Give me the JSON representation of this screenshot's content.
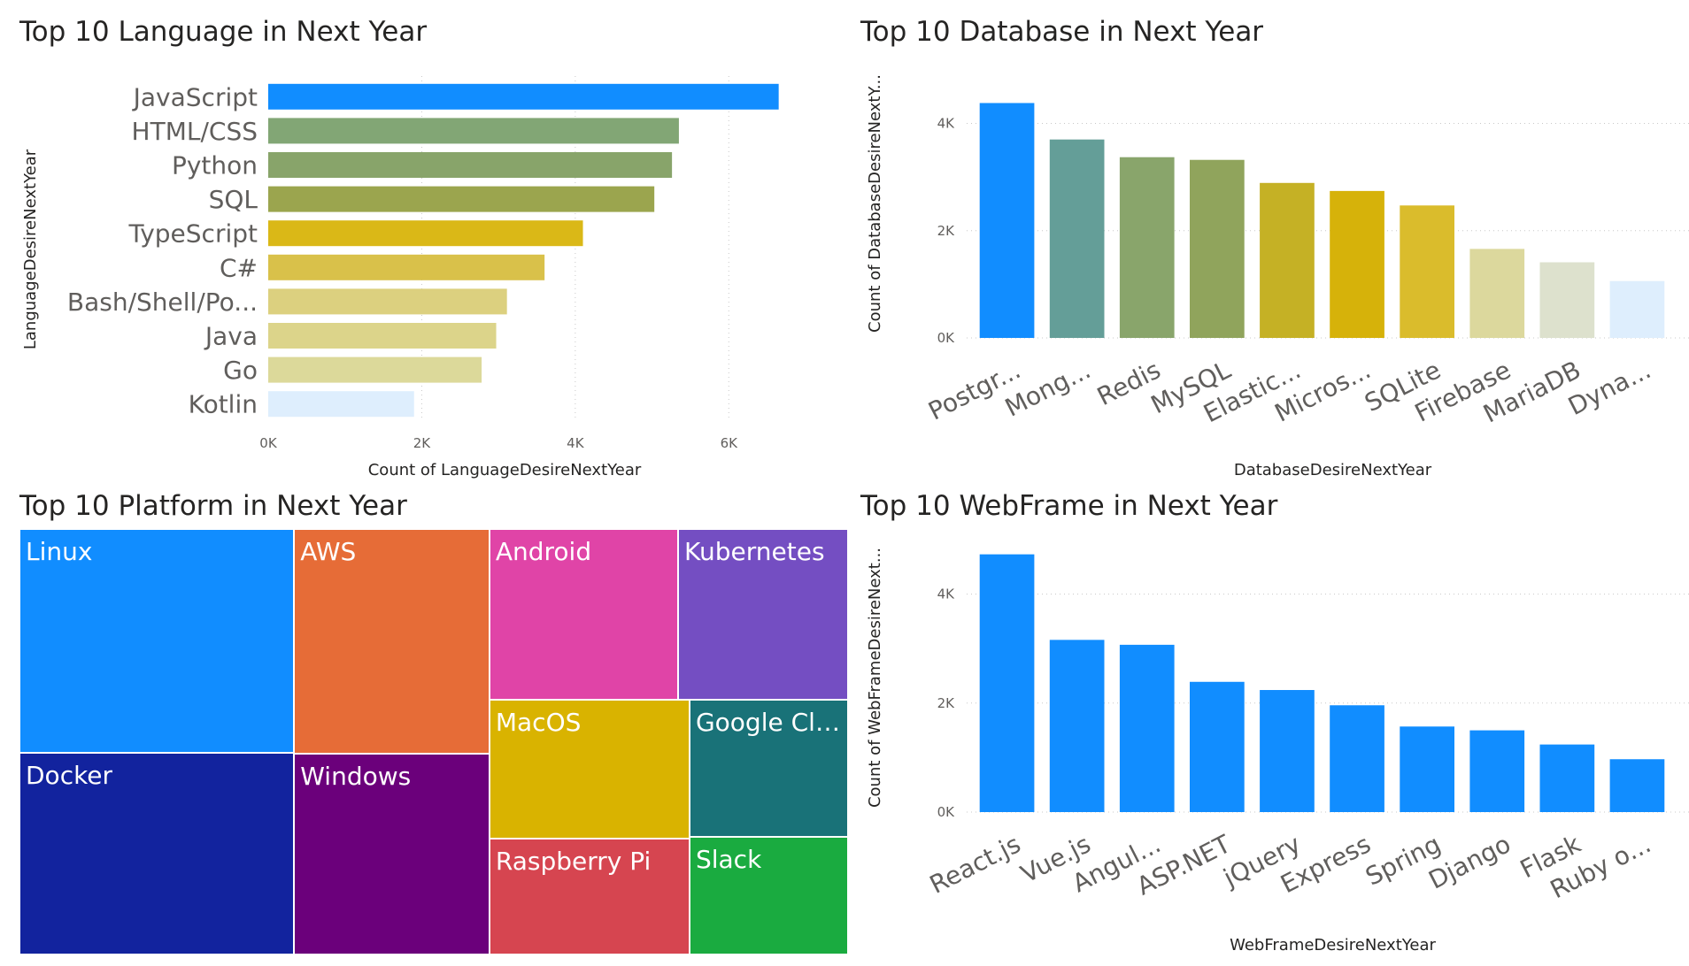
{
  "chart_data": [
    {
      "id": "language",
      "type": "bar",
      "orientation": "horizontal",
      "title": "Top 10 Language in Next Year",
      "xlabel": "Count of LanguageDesireNextYear",
      "ylabel": "LanguageDesireNextYear",
      "categories": [
        "JavaScript",
        "HTML/CSS",
        "Python",
        "SQL",
        "TypeScript",
        "C#",
        "Bash/Shell/Po...",
        "Java",
        "Go",
        "Kotlin"
      ],
      "values": [
        6650,
        5350,
        5260,
        5030,
        4100,
        3600,
        3110,
        2970,
        2780,
        1900
      ],
      "colors": [
        "#118DFF",
        "#82A675",
        "#88A46A",
        "#9BA54E",
        "#DAB817",
        "#D9C14A",
        "#DCD07F",
        "#DCD48A",
        "#DCD99A",
        "#DEEEFD"
      ],
      "xlim": [
        0,
        7000
      ],
      "xticks": [
        0,
        2000,
        4000,
        6000
      ],
      "xtick_labels": [
        "0K",
        "2K",
        "4K",
        "6K"
      ],
      "grid": true
    },
    {
      "id": "database",
      "type": "bar",
      "orientation": "vertical",
      "title": "Top 10 Database in Next Year",
      "xlabel": "DatabaseDesireNextYear",
      "ylabel": "Count of DatabaseDesireNextY...",
      "categories": [
        "Postgr...",
        "Mong...",
        "Redis",
        "MySQL",
        "Elastic...",
        "Micros...",
        "SQLite",
        "Firebase",
        "MariaDB",
        "Dyna..."
      ],
      "values": [
        4380,
        3700,
        3370,
        3320,
        2890,
        2740,
        2470,
        1660,
        1410,
        1060
      ],
      "colors": [
        "#118DFF",
        "#649E98",
        "#89A56B",
        "#90A45C",
        "#C5B125",
        "#D6B20A",
        "#DABC2C",
        "#DCD89D",
        "#DDE1CD",
        "#DEEEFD"
      ],
      "ylim": [
        0,
        4800
      ],
      "yticks": [
        0,
        2000,
        4000
      ],
      "ytick_labels": [
        "0K",
        "2K",
        "4K"
      ],
      "grid": true
    },
    {
      "id": "platform",
      "type": "treemap",
      "title": "Top 10 Platform in Next Year",
      "categories": [
        "Linux",
        "Docker",
        "AWS",
        "Windows",
        "Android",
        "Kubernetes",
        "MacOS",
        "Raspberry Pi",
        "Google Clou...",
        "Slack"
      ],
      "values": [
        5550,
        5010,
        3960,
        3550,
        2910,
        2620,
        2520,
        2090,
        1960,
        1690
      ],
      "colors": [
        "#118DFF",
        "#12239E",
        "#E66C37",
        "#6B007B",
        "#E044A7",
        "#744EC2",
        "#D9B300",
        "#D64550",
        "#197278",
        "#1AAB40"
      ]
    },
    {
      "id": "webframe",
      "type": "bar",
      "orientation": "vertical",
      "title": "Top 10 WebFrame in Next Year",
      "xlabel": "WebFrameDesireNextYear",
      "ylabel": "Count of WebFrameDesireNext...",
      "categories": [
        "React.js",
        "Vue.js",
        "Angul...",
        "ASP.NET",
        "jQuery",
        "Express",
        "Spring",
        "Django",
        "Flask",
        "Ruby o..."
      ],
      "values": [
        4730,
        3160,
        3070,
        2390,
        2240,
        1960,
        1570,
        1500,
        1240,
        970
      ],
      "colors": [
        "#118DFF",
        "#118DFF",
        "#118DFF",
        "#118DFF",
        "#118DFF",
        "#118DFF",
        "#118DFF",
        "#118DFF",
        "#118DFF",
        "#118DFF"
      ],
      "ylim": [
        0,
        5000
      ],
      "yticks": [
        0,
        2000,
        4000
      ],
      "ytick_labels": [
        "0K",
        "2K",
        "4K"
      ],
      "grid": true
    }
  ]
}
